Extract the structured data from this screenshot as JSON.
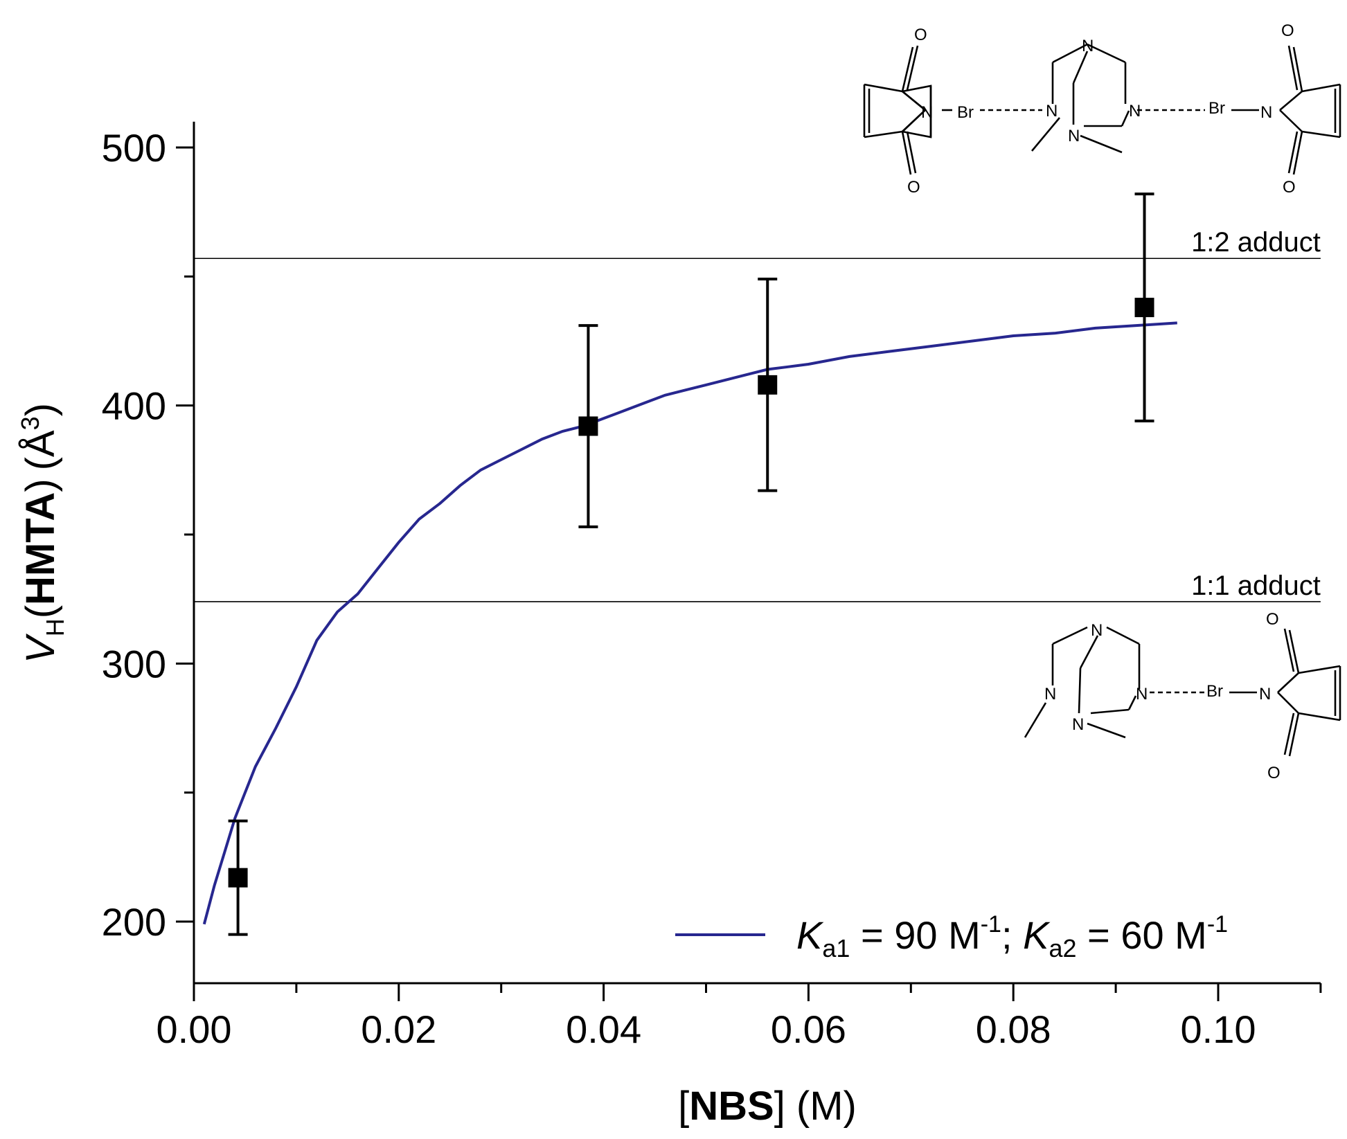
{
  "chart_data": {
    "type": "scatter",
    "xlabel": {
      "open": "[",
      "bold": "NBS",
      "close": "] (M)"
    },
    "ylabel": {
      "sym": "V",
      "sub": "H",
      "open": "(",
      "bold": "HMTA",
      "close": ")",
      "unit": "(Å",
      "sup": "3",
      "unit_close": ")"
    },
    "xlim": [
      0,
      0.11
    ],
    "ylim": [
      175,
      510
    ],
    "x_ticks": [
      0.0,
      0.02,
      0.04,
      0.06,
      0.08,
      0.1
    ],
    "x_tick_labels": [
      "0.00",
      "0.02",
      "0.04",
      "0.06",
      "0.08",
      "0.10"
    ],
    "x_minor_step": 0.01,
    "y_ticks": [
      200,
      300,
      400,
      500
    ],
    "y_tick_labels": [
      "200",
      "300",
      "400",
      "500"
    ],
    "y_minor_step": 50,
    "points": [
      {
        "x": 0.0043,
        "y": 217,
        "err_low": 195,
        "err_high": 239
      },
      {
        "x": 0.0385,
        "y": 392,
        "err_low": 353,
        "err_high": 431
      },
      {
        "x": 0.056,
        "y": 408,
        "err_low": 367,
        "err_high": 449
      },
      {
        "x": 0.0928,
        "y": 438,
        "err_low": 394,
        "err_high": 482
      }
    ],
    "fit_series": {
      "legend_label": {
        "k1": "K",
        "k1_sub": "a1",
        "eq1": " = 90 M",
        "sup1": "-1",
        "sep": "; ",
        "k2": "K",
        "k2_sub": "a2",
        "eq2": " = 60 M",
        "sup2": "-1"
      },
      "color": "#27278f",
      "x": [
        0.001,
        0.002,
        0.003,
        0.004,
        0.005,
        0.006,
        0.008,
        0.01,
        0.012,
        0.014,
        0.016,
        0.018,
        0.02,
        0.022,
        0.024,
        0.026,
        0.028,
        0.03,
        0.032,
        0.034,
        0.036,
        0.038,
        0.04,
        0.042,
        0.044,
        0.046,
        0.048,
        0.05,
        0.052,
        0.054,
        0.056,
        0.058,
        0.06,
        0.064,
        0.068,
        0.072,
        0.076,
        0.08,
        0.084,
        0.088,
        0.092,
        0.096
      ],
      "y": [
        199,
        214,
        227,
        240,
        250,
        260,
        275,
        291,
        309,
        320,
        327,
        337,
        347,
        356,
        362,
        369,
        375,
        379,
        383,
        387,
        390,
        392,
        395,
        398,
        401,
        404,
        406,
        408,
        410,
        412,
        414,
        415,
        416,
        419,
        421,
        423,
        425,
        427,
        428,
        430,
        431,
        432
      ]
    },
    "reference_lines": [
      {
        "y": 457,
        "label": "1:2 adduct"
      },
      {
        "y": 324,
        "label": "1:1 adduct"
      }
    ],
    "marker_color": "#000000",
    "grid": false,
    "legend_position": "bottom-right"
  },
  "molecules": {
    "atom_N": "N",
    "atom_O": "O",
    "atom_Br": "Br"
  }
}
